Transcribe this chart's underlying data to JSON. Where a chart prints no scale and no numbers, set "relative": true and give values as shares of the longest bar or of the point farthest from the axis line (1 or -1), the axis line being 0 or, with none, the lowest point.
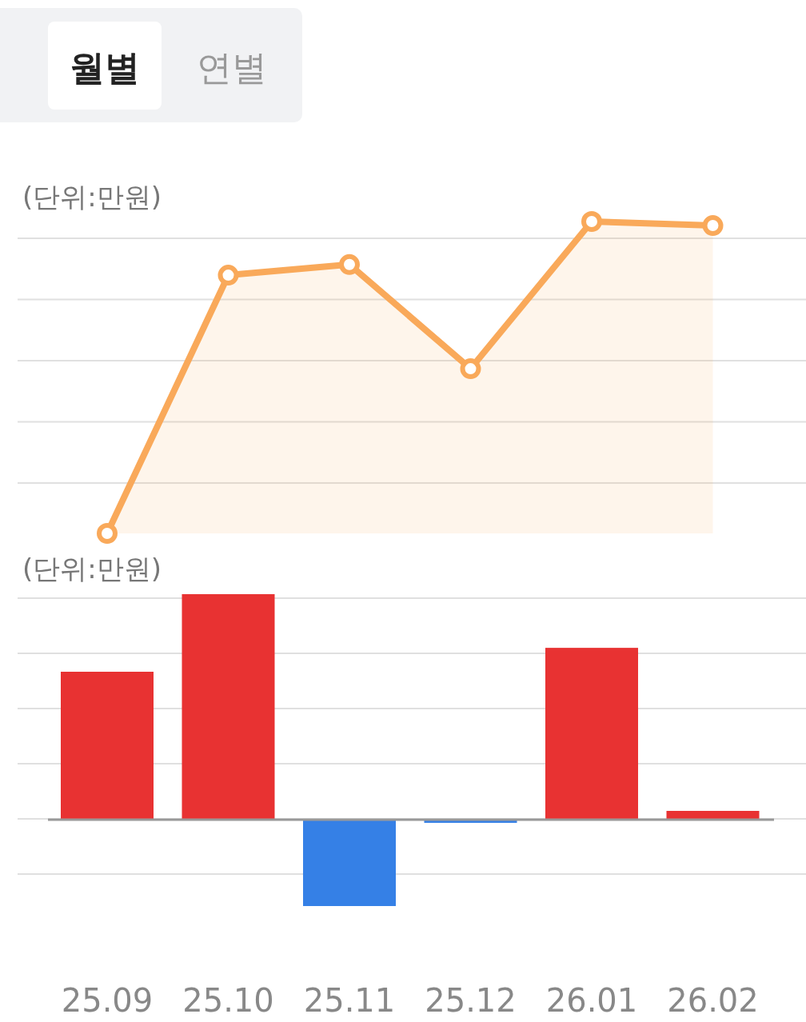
{
  "chart_data": [
    {
      "type": "area",
      "ylabel": "(단위:만원)",
      "annotations": [
        "월별",
        "연별"
      ],
      "relative": true,
      "grid": "y",
      "marker": "circle",
      "tick_labels": false,
      "categories": [
        "25.09",
        "25.10",
        "25.11",
        "25.12",
        "26.01",
        "26.02"
      ],
      "series": [
        {
          "color": "#f9a95a",
          "values": [
            0,
            0.828,
            0.862,
            0.528,
            1,
            0.987
          ]
        }
      ]
    },
    {
      "type": "bar",
      "ylabel": "(단위:만원)",
      "relative": true,
      "grid": "y",
      "tick_labels": "x",
      "categories": [
        "25.09",
        "25.10",
        "25.11",
        "25.12",
        "26.01",
        "26.02"
      ],
      "series": [
        {
          "colors": [
            "#e83232",
            "#e83232",
            "#3580e6",
            "#3580e6",
            "#e83232",
            "#e83232"
          ],
          "values": [
            0.656,
            1,
            -0.383,
            -0.014,
            0.762,
            0.039
          ]
        }
      ]
    }
  ]
}
